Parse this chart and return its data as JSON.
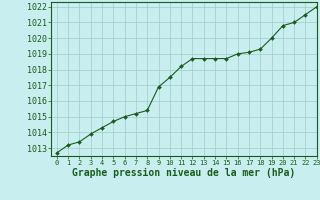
{
  "x": [
    0,
    1,
    2,
    3,
    4,
    5,
    6,
    7,
    8,
    9,
    10,
    11,
    12,
    13,
    14,
    15,
    16,
    17,
    18,
    19,
    20,
    21,
    22,
    23
  ],
  "y": [
    1012.7,
    1013.2,
    1013.4,
    1013.9,
    1014.3,
    1014.7,
    1015.0,
    1015.2,
    1015.4,
    1016.9,
    1017.5,
    1018.2,
    1018.7,
    1018.7,
    1018.7,
    1018.7,
    1019.0,
    1019.1,
    1019.3,
    1020.0,
    1020.8,
    1021.0,
    1021.5,
    1022.0
  ],
  "bg_color": "#c8eef0",
  "line_color": "#1a5c1a",
  "marker_color": "#1a5c1a",
  "grid_color": "#a0ccc8",
  "xlabel": "Graphe pression niveau de la mer (hPa)",
  "xlim": [
    -0.5,
    23
  ],
  "ylim": [
    1012.5,
    1022.3
  ],
  "yticks": [
    1013,
    1014,
    1015,
    1016,
    1017,
    1018,
    1019,
    1020,
    1021,
    1022
  ],
  "xticks": [
    0,
    1,
    2,
    3,
    4,
    5,
    6,
    7,
    8,
    9,
    10,
    11,
    12,
    13,
    14,
    15,
    16,
    17,
    18,
    19,
    20,
    21,
    22,
    23
  ],
  "xlabel_color": "#1a5c1a",
  "tick_color": "#1a5c1a",
  "spine_color": "#1a5c1a"
}
